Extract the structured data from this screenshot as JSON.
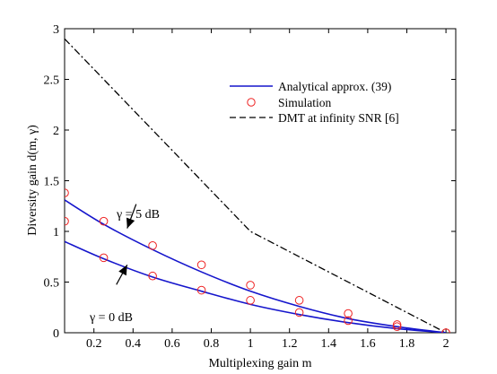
{
  "chart_data": {
    "type": "line",
    "xlabel": "Multiplexing gain m",
    "ylabel": "Diversity gain d(m, γ)",
    "xlim": [
      0.05,
      2.05
    ],
    "ylim": [
      0,
      3
    ],
    "xticks": [
      0.2,
      0.4,
      0.6,
      0.8,
      1,
      1.2,
      1.4,
      1.6,
      1.8,
      2
    ],
    "xtick_labels": [
      "0.2",
      "0.4",
      "0.6",
      "0.8",
      "1",
      "1.2",
      "1.4",
      "1.6",
      "1.8",
      "2"
    ],
    "yticks": [
      0,
      0.5,
      1,
      1.5,
      2,
      2.5,
      3
    ],
    "ytick_labels": [
      "0",
      "0.5",
      "1",
      "1.5",
      "2",
      "2.5",
      "3"
    ],
    "grid": false,
    "legend_position": "top-right",
    "legend": [
      {
        "label": "Analytical approx. (39)",
        "style": "solid",
        "color": "#1515cc"
      },
      {
        "label": "Simulation",
        "style": "circle",
        "color": "#ee2222"
      },
      {
        "label": "DMT at infinity SNR [6]",
        "style": "dashdot",
        "color": "#000000"
      }
    ],
    "series": [
      {
        "name": "Analytical approx. (39)",
        "curve": "γ = 5 dB",
        "style": "solid",
        "color": "#1515cc",
        "x": [
          0.05,
          0.25,
          0.5,
          0.75,
          1.0,
          1.25,
          1.5,
          1.75,
          2.0
        ],
        "y": [
          1.31,
          1.07,
          0.82,
          0.6,
          0.41,
          0.26,
          0.14,
          0.06,
          0.0
        ]
      },
      {
        "name": "Analytical approx. (39)",
        "curve": "γ = 0 dB",
        "style": "solid",
        "color": "#1515cc",
        "x": [
          0.05,
          0.25,
          0.5,
          0.75,
          1.0,
          1.25,
          1.5,
          1.75,
          2.0
        ],
        "y": [
          0.9,
          0.73,
          0.55,
          0.41,
          0.28,
          0.18,
          0.1,
          0.04,
          0.0
        ]
      },
      {
        "name": "Simulation",
        "curve": "γ = 5 dB",
        "style": "circle",
        "color": "#ee2222",
        "x": [
          0.05,
          0.25,
          0.5,
          0.75,
          1.0,
          1.25,
          1.5,
          1.75,
          2.0
        ],
        "y": [
          1.38,
          1.1,
          0.86,
          0.67,
          0.47,
          0.32,
          0.19,
          0.08,
          0.0
        ]
      },
      {
        "name": "Simulation",
        "curve": "γ = 0 dB",
        "style": "circle",
        "color": "#ee2222",
        "x": [
          0.05,
          0.25,
          0.5,
          0.75,
          1.0,
          1.25,
          1.5,
          1.75,
          2.0
        ],
        "y": [
          1.1,
          0.74,
          0.56,
          0.42,
          0.32,
          0.2,
          0.12,
          0.06,
          0.0
        ]
      },
      {
        "name": "DMT at infinity SNR [6]",
        "style": "dashdot",
        "color": "#000000",
        "x": [
          0.05,
          1.0,
          2.0
        ],
        "y": [
          2.9,
          1.0,
          0.0
        ]
      }
    ],
    "annotations": [
      {
        "text": "γ = 5 dB",
        "points_to": {
          "x": 0.37,
          "y": 1.03
        }
      },
      {
        "text": "γ = 0 dB",
        "points_to": {
          "x": 0.37,
          "y": 0.67
        }
      }
    ]
  }
}
